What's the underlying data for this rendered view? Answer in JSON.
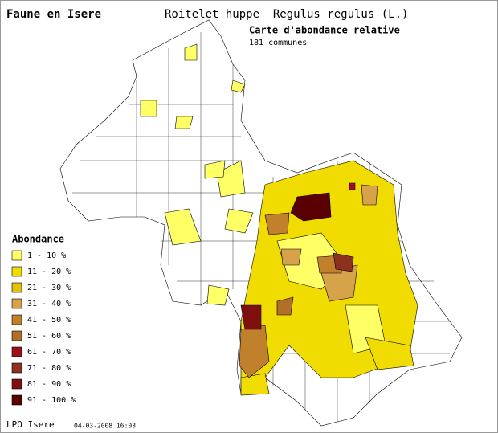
{
  "header": {
    "site": "Faune en Isere",
    "species": "Roitelet huppe  Regulus regulus (L.)",
    "map_title": "Carte d'abondance relative",
    "count": "181 communes"
  },
  "legend": {
    "title": "Abondance",
    "items": [
      {
        "label": "1 - 10 %",
        "color": "#ffff66"
      },
      {
        "label": "11 - 20 %",
        "color": "#f0dc00"
      },
      {
        "label": "21 - 30 %",
        "color": "#e2c010"
      },
      {
        "label": "31 - 40 %",
        "color": "#d6a24a"
      },
      {
        "label": "41 - 50 %",
        "color": "#c0802c"
      },
      {
        "label": "51 - 60 %",
        "color": "#b0702a"
      },
      {
        "label": "61 - 70 %",
        "color": "#a0101c"
      },
      {
        "label": "71 - 80 %",
        "color": "#8c3020"
      },
      {
        "label": "81 - 90 %",
        "color": "#801010"
      },
      {
        "label": "91 - 100 %",
        "color": "#5a0000"
      }
    ]
  },
  "footer": {
    "source": "LPO Isere",
    "date": "04-03-2008 16:03"
  }
}
